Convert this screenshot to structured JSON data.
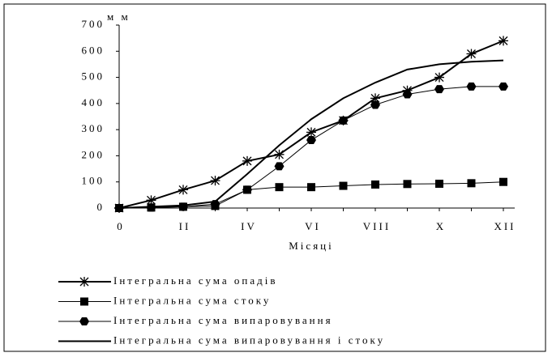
{
  "chart_data": {
    "type": "line",
    "y_label": "м м",
    "x_label": "Місяці",
    "categories": [
      "0",
      null,
      "II",
      null,
      "IV",
      null,
      "VI",
      null,
      "VIII",
      null,
      "X",
      null,
      "XII"
    ],
    "ylim": [
      0,
      700
    ],
    "yticks": [
      0,
      100,
      200,
      300,
      400,
      500,
      600,
      700
    ],
    "grid": false,
    "legend": "bottom",
    "series": [
      {
        "name": "Інтегральна сума опадів",
        "color": "#000000",
        "marker": "star",
        "line_width": 2,
        "values": [
          0,
          30,
          70,
          105,
          180,
          205,
          290,
          335,
          420,
          450,
          500,
          590,
          640
        ]
      },
      {
        "name": "Інтегральна сума стоку",
        "color": "#000000",
        "marker": "square",
        "line_width": 1,
        "values": [
          0,
          2,
          5,
          8,
          70,
          80,
          80,
          85,
          90,
          92,
          93,
          95,
          100
        ]
      },
      {
        "name": "Інтегральна сума випаровування",
        "color": "#000000",
        "marker": "circle",
        "line_width": 1,
        "values": [
          0,
          2,
          5,
          15,
          70,
          160,
          260,
          335,
          395,
          435,
          455,
          465,
          465
        ]
      },
      {
        "name": "Інтегральна сума випаровування і стоку",
        "color": "#000000",
        "marker": "none",
        "line_width": 2,
        "values": [
          0,
          5,
          10,
          25,
          130,
          240,
          340,
          420,
          480,
          530,
          550,
          560,
          565
        ]
      }
    ]
  }
}
